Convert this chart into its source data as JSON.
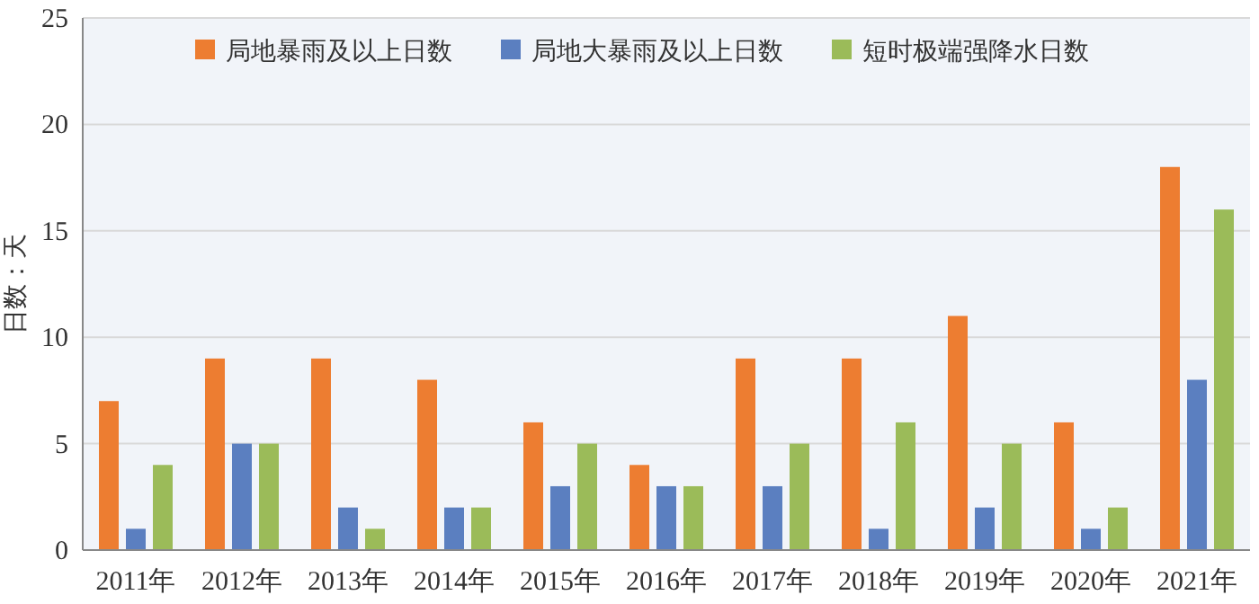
{
  "chart_data": {
    "type": "bar",
    "ylabel": "日数：天",
    "categories": [
      "2011年",
      "2012年",
      "2013年",
      "2014年",
      "2015年",
      "2016年",
      "2017年",
      "2018年",
      "2019年",
      "2020年",
      "2021年"
    ],
    "series": [
      {
        "name": "局地暴雨及以上日数",
        "color": "#ed7d31",
        "values": [
          7,
          9,
          9,
          8,
          6,
          4,
          9,
          9,
          11,
          6,
          18
        ]
      },
      {
        "name": "局地大暴雨及以上日数",
        "color": "#5b7fc0",
        "values": [
          1,
          5,
          2,
          2,
          3,
          3,
          3,
          1,
          2,
          1,
          8
        ]
      },
      {
        "name": "短时极端强降水日数",
        "color": "#9bbb59",
        "values": [
          4,
          5,
          1,
          2,
          5,
          3,
          5,
          6,
          5,
          2,
          16
        ]
      }
    ],
    "ylim": [
      0,
      25
    ],
    "yticks": [
      0,
      5,
      10,
      15,
      20,
      25
    ],
    "grid": "y",
    "legend": "top"
  }
}
